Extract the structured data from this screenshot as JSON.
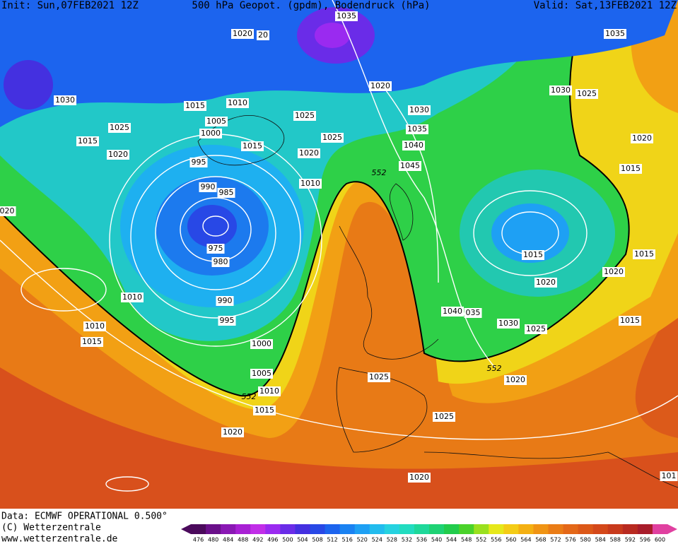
{
  "header": {
    "init": "Init: Sun,07FEB2021 12Z",
    "title": "500 hPa Geopot. (gpdm), Bodendruck (hPa)",
    "valid": "Valid: Sat,13FEB2021 12Z"
  },
  "footer": {
    "data": "Data: ECMWF OPERATIONAL 0.500°",
    "copyright": "(C) Wetterzentrale",
    "url": "www.wetterzentrale.de"
  },
  "isobar_labels": [
    "1035",
    "1035",
    "1020",
    "20",
    "1030",
    "1020",
    "1015",
    "1010",
    "1030",
    "1030",
    "1025",
    "1005",
    "1025",
    "1025",
    "1035",
    "1000",
    "1025",
    "1020",
    "1015",
    "1015",
    "1040",
    "1020",
    "1020",
    "995",
    "1045",
    "1015",
    "990",
    "985",
    "1010",
    "020",
    "975",
    "980",
    "1015",
    "1015",
    "1020",
    "1020",
    "1010",
    "990",
    "995",
    "1040",
    "035",
    "1030",
    "1025",
    "1015",
    "1010",
    "1015",
    "1000",
    "1005",
    "1025",
    "1020",
    "1010",
    "1015",
    "1025",
    "1020",
    "1020",
    "101"
  ],
  "contour_labels": [
    "552",
    "552",
    "552"
  ],
  "colorbar": {
    "levels": [
      476,
      480,
      484,
      488,
      492,
      496,
      500,
      504,
      508,
      512,
      516,
      520,
      524,
      528,
      532,
      536,
      540,
      544,
      548,
      552,
      556,
      560,
      564,
      568,
      572,
      576,
      580,
      584,
      588,
      592,
      596,
      600
    ],
    "colors": [
      "#4b0a5c",
      "#6a0f8a",
      "#8a18b4",
      "#a820d4",
      "#c12ee8",
      "#9a2af0",
      "#6a2ce8",
      "#4430e0",
      "#2848e6",
      "#1c64ee",
      "#1a82f2",
      "#1ea0f4",
      "#22bcee",
      "#26d2e0",
      "#22dcc0",
      "#1ed89a",
      "#1ed274",
      "#22cc4c",
      "#4ad22a",
      "#9ae01e",
      "#e6e81a",
      "#f4cc16",
      "#f4b012",
      "#f09414",
      "#ea7c16",
      "#e46818",
      "#dc5818",
      "#d4481a",
      "#c83a1c",
      "#b82a20",
      "#a81c2a",
      "#e040a0"
    ]
  }
}
